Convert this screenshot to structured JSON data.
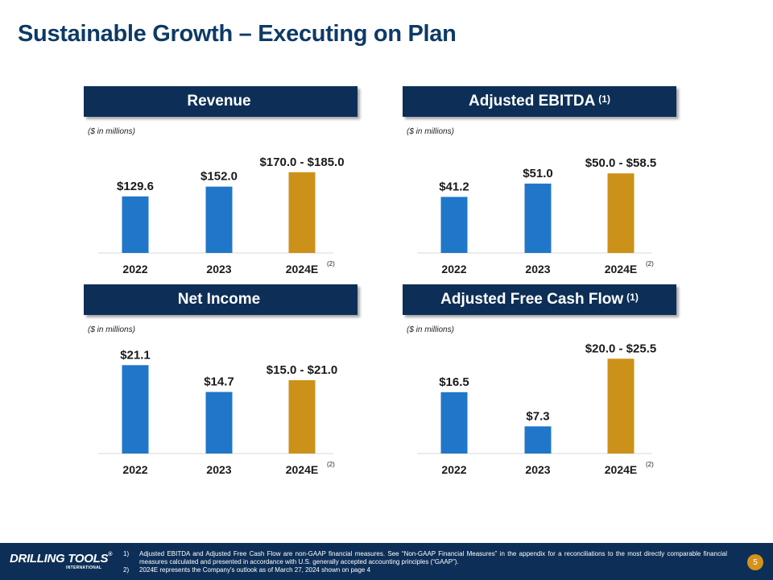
{
  "title": "Sustainable Growth – Executing on Plan",
  "colors": {
    "actual": "#2077c9",
    "estimate": "#cc9118",
    "header_bg": "#0d2f57",
    "title": "#0d3a66"
  },
  "chart_data": [
    {
      "type": "bar",
      "title": "Revenue",
      "title_note": "",
      "units": "($ in millions)",
      "categories": [
        "2022",
        "2023",
        "2024E"
      ],
      "category_notes": [
        "",
        "",
        "(2)"
      ],
      "values": [
        129.6,
        152.0,
        185.0
      ],
      "value_labels": [
        "$129.6",
        "$152.0",
        "$170.0 - $185.0"
      ],
      "bar_colors": [
        "#2077c9",
        "#2077c9",
        "#cc9118"
      ],
      "ylim": [
        0,
        240
      ]
    },
    {
      "type": "bar",
      "title": "Adjusted EBITDA",
      "title_note": "(1)",
      "units": "($ in millions)",
      "categories": [
        "2022",
        "2023",
        "2024E"
      ],
      "category_notes": [
        "",
        "",
        "(2)"
      ],
      "values": [
        41.2,
        51.0,
        58.5
      ],
      "value_labels": [
        "$41.2",
        "$51.0",
        "$50.0 - $58.5"
      ],
      "bar_colors": [
        "#2077c9",
        "#2077c9",
        "#cc9118"
      ],
      "ylim": [
        0,
        77
      ]
    },
    {
      "type": "bar",
      "title": "Net Income",
      "title_note": "",
      "units": "($ in millions)",
      "categories": [
        "2022",
        "2023",
        "2024E"
      ],
      "category_notes": [
        "",
        "",
        "(2)"
      ],
      "values": [
        21.1,
        14.7,
        17.5
      ],
      "value_labels": [
        "$21.1",
        "$14.7",
        "$15.0 - $21.0"
      ],
      "bar_colors": [
        "#2077c9",
        "#2077c9",
        "#cc9118"
      ],
      "ylim": [
        0,
        25
      ]
    },
    {
      "type": "bar",
      "title": "Adjusted Free Cash Flow",
      "title_note": "(1)",
      "units": "($ in millions)",
      "categories": [
        "2022",
        "2023",
        "2024E"
      ],
      "category_notes": [
        "",
        "",
        "(2)"
      ],
      "values": [
        16.5,
        7.3,
        25.5
      ],
      "value_labels": [
        "$16.5",
        "$7.3",
        "$20.0 - $25.5"
      ],
      "bar_colors": [
        "#2077c9",
        "#2077c9",
        "#cc9118"
      ],
      "ylim": [
        0,
        26
      ]
    }
  ],
  "footer": {
    "logo_text": "DRILLING TOOLS",
    "logo_reg": "®",
    "logo_sub": "INTERNATIONAL",
    "notes": [
      {
        "num": "1)",
        "text": "Adjusted EBITDA and Adjusted Free Cash Flow are non-GAAP financial measures. See “Non-GAAP Financial Measures” in the appendix for a reconciliations to the most directly comparable financial measures calculated and presented in accordance with U.S. generally accepted accounting principles (“GAAP”)."
      },
      {
        "num": "2)",
        "text": "2024E represents the Company's outlook as of March 27, 2024 shown on page 4"
      }
    ],
    "page_number": "5"
  }
}
